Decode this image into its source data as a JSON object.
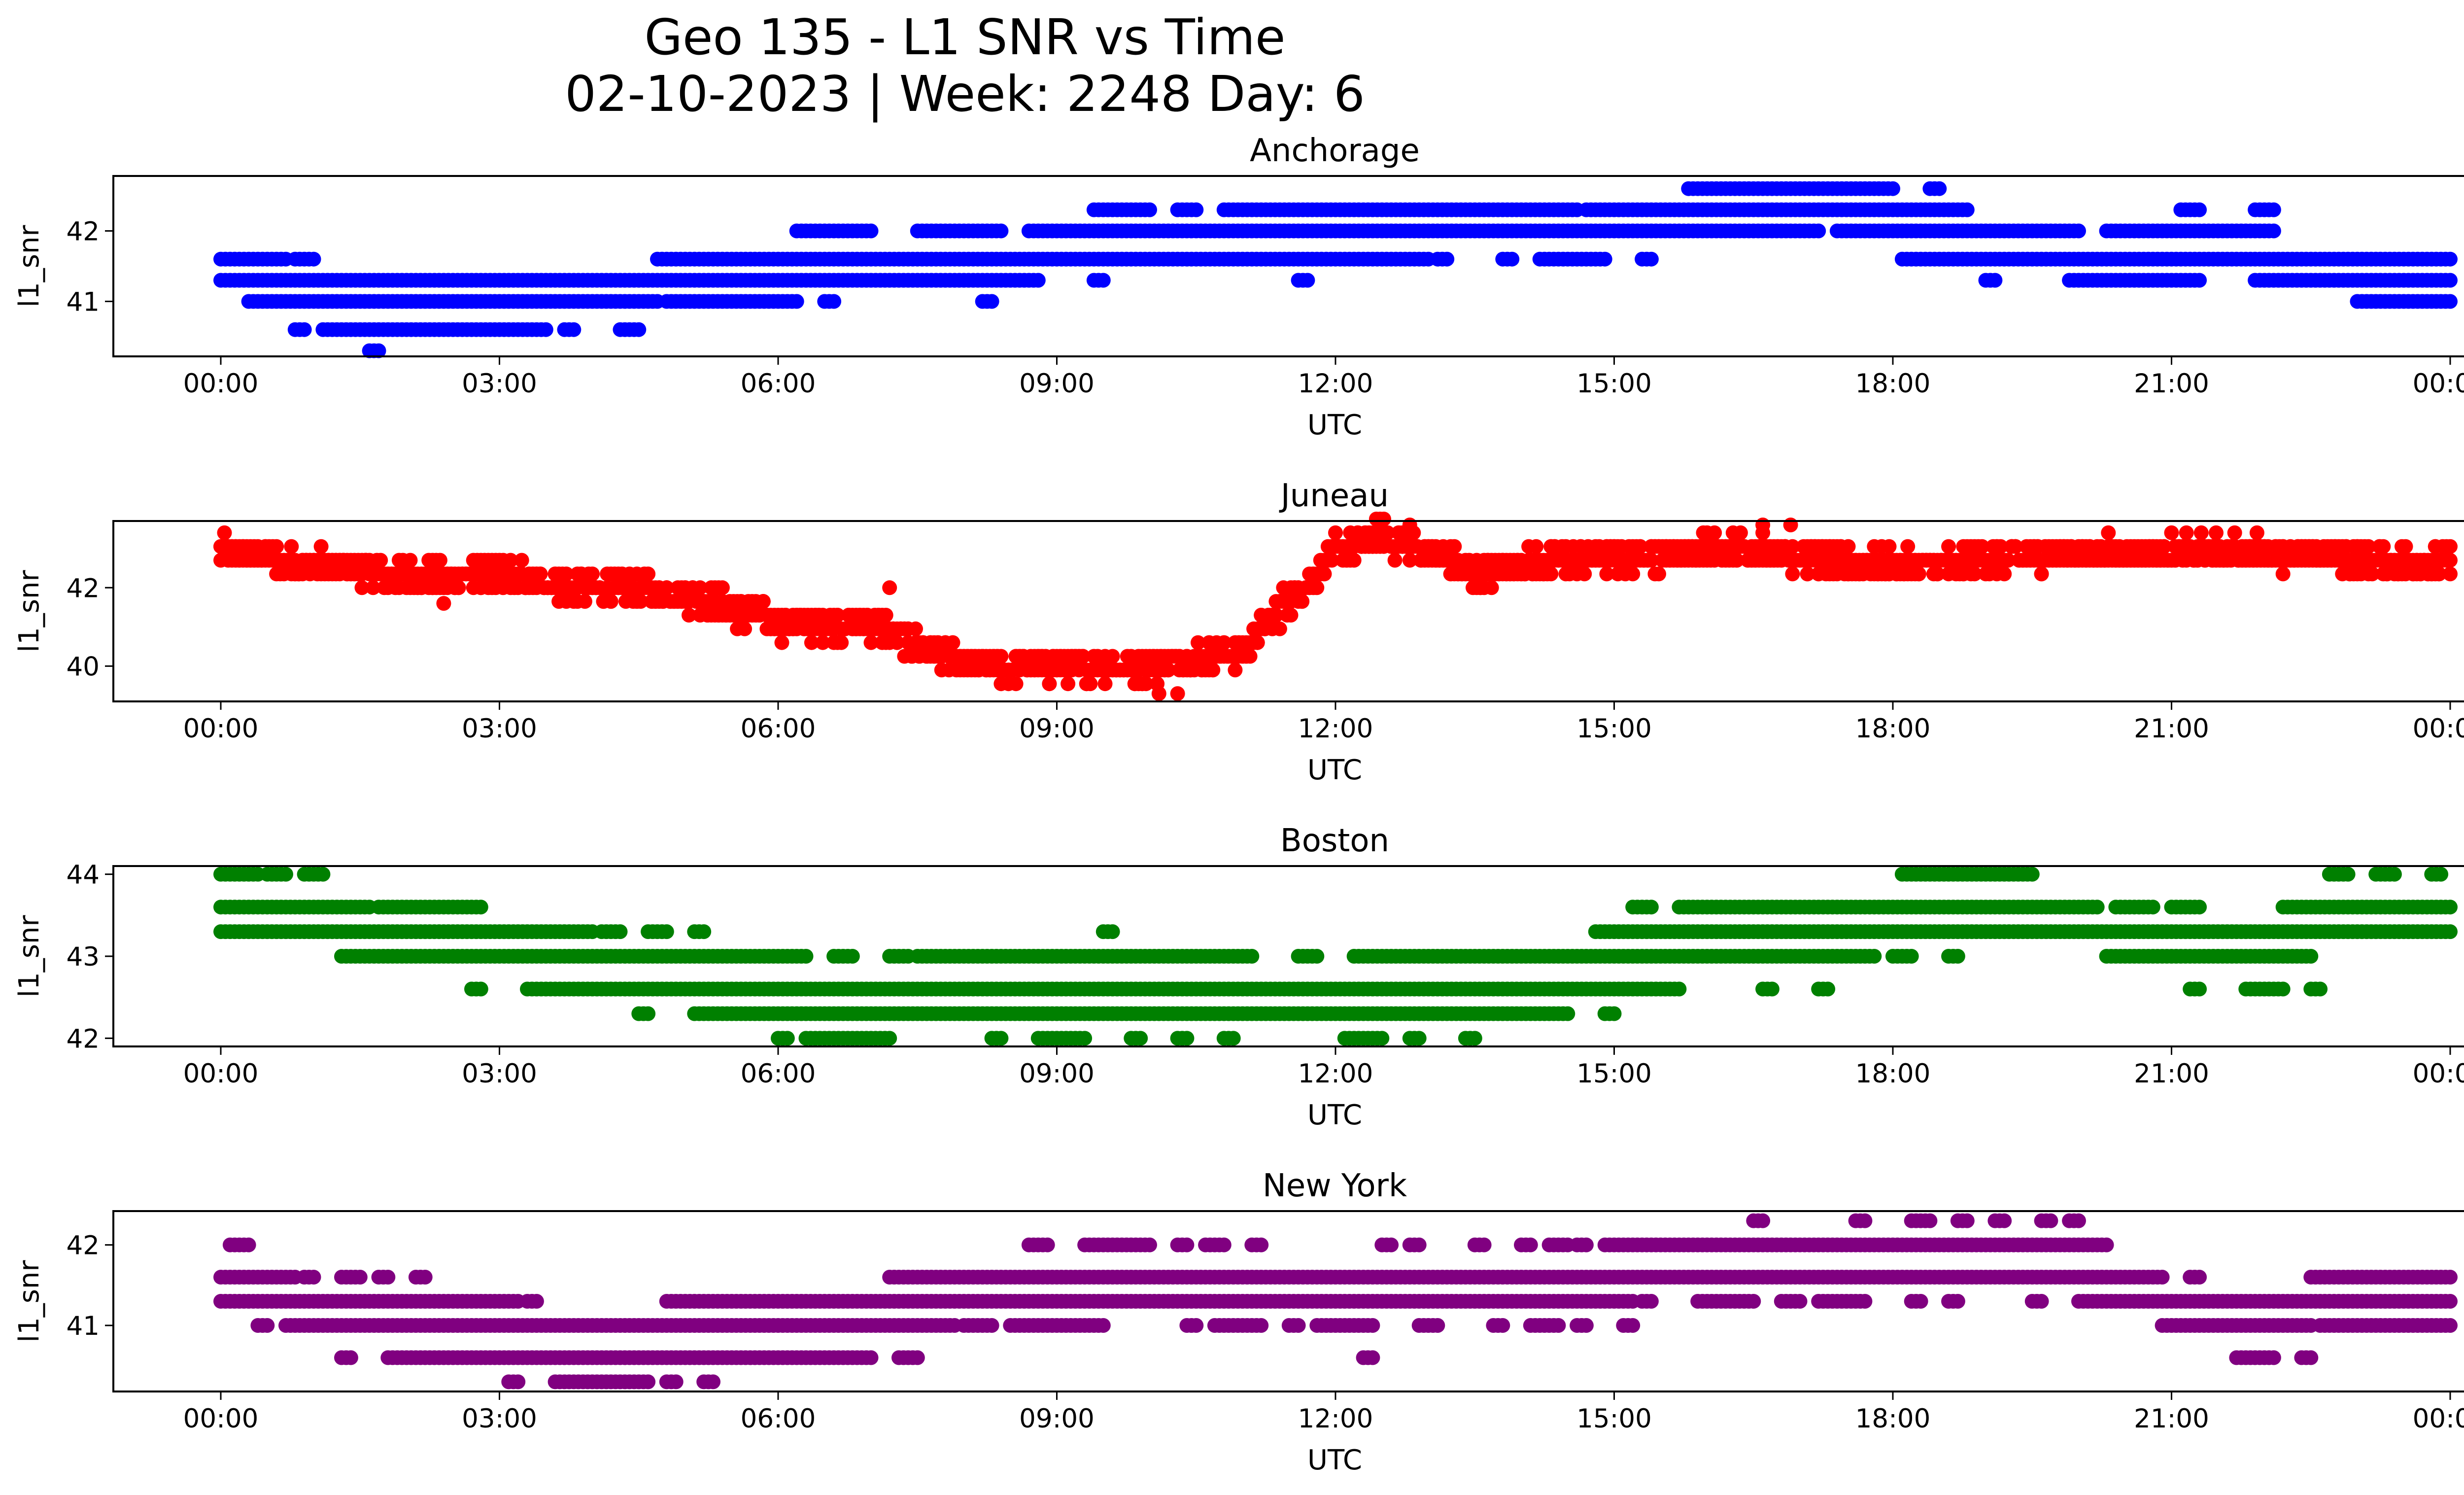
{
  "figure": {
    "title_line1": "Geo 135 - L1 SNR vs Time",
    "title_line2": "02-10-2023 | Week: 2248 Day: 6"
  },
  "chart_data": [
    {
      "type": "scatter",
      "title": "Anchorage",
      "xlabel": "UTC",
      "ylabel": "l1_snr",
      "color": "#0000ff",
      "x_unit": "hours UTC",
      "xlim": [
        -1.15,
        25.15
      ],
      "ylim": [
        40.22,
        42.78
      ],
      "yticks": [
        41,
        42
      ],
      "xticks": [
        "00:00",
        "03:00",
        "06:00",
        "09:00",
        "12:00",
        "15:00",
        "18:00",
        "21:00",
        "00:00"
      ],
      "levels": [
        {
          "y": 41.0,
          "ranges": [
            [
              0.3,
              4.7
            ],
            [
              4.8,
              6.2
            ],
            [
              6.5,
              6.6
            ],
            [
              8.2,
              8.3
            ],
            [
              23.0,
              24.0
            ]
          ]
        },
        {
          "y": 41.3,
          "ranges": [
            [
              0.0,
              8.8
            ],
            [
              9.4,
              9.5
            ],
            [
              11.6,
              11.7
            ],
            [
              19.0,
              19.1
            ],
            [
              19.9,
              21.3
            ],
            [
              21.9,
              24.0
            ]
          ]
        },
        {
          "y": 41.6,
          "ranges": [
            [
              0.0,
              0.7
            ],
            [
              0.8,
              1.0
            ],
            [
              4.7,
              13.0
            ],
            [
              13.1,
              13.2
            ],
            [
              13.8,
              13.9
            ],
            [
              14.2,
              14.9
            ],
            [
              15.3,
              15.4
            ],
            [
              18.1,
              24.0
            ]
          ]
        },
        {
          "y": 42.0,
          "ranges": [
            [
              6.2,
              7.0
            ],
            [
              7.5,
              8.4
            ],
            [
              8.7,
              17.2
            ],
            [
              17.4,
              20.0
            ],
            [
              20.3,
              22.1
            ]
          ]
        },
        {
          "y": 42.3,
          "ranges": [
            [
              9.4,
              10.0
            ],
            [
              10.3,
              10.5
            ],
            [
              10.8,
              14.6
            ],
            [
              14.7,
              18.8
            ],
            [
              21.1,
              21.3
            ],
            [
              21.9,
              22.1
            ]
          ]
        },
        {
          "y": 42.6,
          "ranges": [
            [
              15.8,
              18.0
            ],
            [
              18.4,
              18.5
            ]
          ]
        },
        {
          "y": 40.6,
          "ranges": [
            [
              0.8,
              0.9
            ],
            [
              1.1,
              3.5
            ],
            [
              3.7,
              3.8
            ],
            [
              4.3,
              4.5
            ]
          ]
        },
        {
          "y": 40.3,
          "ranges": [
            [
              1.6,
              1.7
            ]
          ]
        }
      ]
    },
    {
      "type": "scatter",
      "title": "Juneau",
      "xlabel": "UTC",
      "ylabel": "l1_snr",
      "color": "#ff0000",
      "x_unit": "hours UTC",
      "xlim": [
        -1.15,
        25.15
      ],
      "ylim": [
        39.1,
        43.7
      ],
      "yticks": [
        40,
        42
      ],
      "xticks": [
        "00:00",
        "03:00",
        "06:00",
        "09:00",
        "12:00",
        "15:00",
        "18:00",
        "21:00",
        "00:00"
      ],
      "trend": [
        [
          0.0,
          42.9
        ],
        [
          1.0,
          42.6
        ],
        [
          2.0,
          42.3
        ],
        [
          3.0,
          42.3
        ],
        [
          4.0,
          42.0
        ],
        [
          5.0,
          41.8
        ],
        [
          6.0,
          41.1
        ],
        [
          7.0,
          41.1
        ],
        [
          8.0,
          40.0
        ],
        [
          9.0,
          40.0
        ],
        [
          10.0,
          40.0
        ],
        [
          11.0,
          40.4
        ],
        [
          11.5,
          41.7
        ],
        [
          12.0,
          42.9
        ],
        [
          12.5,
          43.3
        ],
        [
          13.0,
          42.9
        ],
        [
          13.5,
          42.3
        ],
        [
          14.0,
          42.6
        ],
        [
          15.0,
          42.8
        ],
        [
          16.5,
          43.0
        ],
        [
          17.5,
          42.6
        ],
        [
          18.5,
          42.6
        ],
        [
          20.0,
          42.9
        ],
        [
          22.0,
          42.9
        ],
        [
          24.0,
          42.6
        ]
      ],
      "spread": 0.7,
      "outliers": [
        [
          2.4,
          41.6
        ],
        [
          7.2,
          42.0
        ],
        [
          10.1,
          39.3
        ],
        [
          10.3,
          39.3
        ],
        [
          16.6,
          43.6
        ],
        [
          16.9,
          43.6
        ],
        [
          12.8,
          43.6
        ]
      ]
    },
    {
      "type": "scatter",
      "title": "Boston",
      "xlabel": "UTC",
      "ylabel": "l1_snr",
      "color": "#008000",
      "x_unit": "hours UTC",
      "xlim": [
        -1.15,
        25.15
      ],
      "ylim": [
        41.9,
        44.1
      ],
      "yticks": [
        42,
        43,
        44
      ],
      "xticks": [
        "00:00",
        "03:00",
        "06:00",
        "09:00",
        "12:00",
        "15:00",
        "18:00",
        "21:00",
        "00:00"
      ],
      "levels": [
        {
          "y": 44.0,
          "ranges": [
            [
              0.0,
              0.4
            ],
            [
              0.5,
              0.7
            ],
            [
              0.9,
              1.1
            ],
            [
              18.1,
              19.5
            ],
            [
              22.7,
              22.9
            ],
            [
              23.2,
              23.4
            ],
            [
              23.8,
              23.9
            ]
          ]
        },
        {
          "y": 43.6,
          "ranges": [
            [
              0.0,
              1.6
            ],
            [
              1.7,
              2.8
            ],
            [
              15.2,
              15.4
            ],
            [
              15.7,
              20.2
            ],
            [
              20.4,
              20.8
            ],
            [
              21.0,
              21.3
            ],
            [
              22.2,
              24.0
            ]
          ]
        },
        {
          "y": 43.3,
          "ranges": [
            [
              0.0,
              4.0
            ],
            [
              4.1,
              4.3
            ],
            [
              4.6,
              4.8
            ],
            [
              5.1,
              5.2
            ],
            [
              9.5,
              9.6
            ],
            [
              14.8,
              24.0
            ]
          ]
        },
        {
          "y": 43.0,
          "ranges": [
            [
              1.3,
              6.3
            ],
            [
              6.6,
              6.8
            ],
            [
              7.2,
              7.4
            ],
            [
              7.5,
              11.1
            ],
            [
              11.6,
              11.8
            ],
            [
              12.2,
              17.8
            ],
            [
              18.0,
              18.2
            ],
            [
              18.6,
              18.7
            ],
            [
              20.3,
              22.5
            ]
          ]
        },
        {
          "y": 42.6,
          "ranges": [
            [
              2.7,
              2.8
            ],
            [
              3.3,
              15.7
            ],
            [
              16.6,
              16.7
            ],
            [
              17.2,
              17.3
            ],
            [
              21.2,
              21.3
            ],
            [
              21.8,
              22.2
            ],
            [
              22.5,
              22.6
            ]
          ]
        },
        {
          "y": 42.3,
          "ranges": [
            [
              4.5,
              4.6
            ],
            [
              5.1,
              14.5
            ],
            [
              14.9,
              15.0
            ]
          ]
        },
        {
          "y": 42.0,
          "ranges": [
            [
              6.0,
              6.1
            ],
            [
              6.3,
              7.2
            ],
            [
              8.3,
              8.4
            ],
            [
              8.8,
              9.3
            ],
            [
              9.8,
              9.9
            ],
            [
              10.3,
              10.4
            ],
            [
              10.8,
              10.9
            ],
            [
              12.1,
              12.5
            ],
            [
              12.8,
              12.9
            ],
            [
              13.4,
              13.5
            ]
          ]
        }
      ]
    },
    {
      "type": "scatter",
      "title": "New York",
      "xlabel": "UTC",
      "ylabel": "l1_snr",
      "color": "#800080",
      "x_unit": "hours UTC",
      "xlim": [
        -1.15,
        25.15
      ],
      "ylim": [
        40.18,
        42.42
      ],
      "yticks": [
        41,
        42
      ],
      "xticks": [
        "00:00",
        "03:00",
        "06:00",
        "09:00",
        "12:00",
        "15:00",
        "18:00",
        "21:00",
        "00:00"
      ],
      "levels": [
        {
          "y": 42.0,
          "ranges": [
            [
              0.1,
              0.3
            ],
            [
              8.7,
              8.9
            ],
            [
              9.3,
              10.0
            ],
            [
              10.3,
              10.4
            ],
            [
              10.6,
              10.8
            ],
            [
              11.1,
              11.2
            ],
            [
              12.5,
              12.6
            ],
            [
              12.8,
              12.9
            ],
            [
              13.5,
              13.6
            ],
            [
              14.0,
              14.1
            ],
            [
              14.3,
              14.5
            ],
            [
              14.6,
              14.7
            ],
            [
              14.9,
              20.3
            ]
          ]
        },
        {
          "y": 41.6,
          "ranges": [
            [
              0.0,
              0.8
            ],
            [
              0.9,
              1.0
            ],
            [
              1.3,
              1.5
            ],
            [
              1.7,
              1.8
            ],
            [
              2.1,
              2.2
            ],
            [
              7.2,
              20.9
            ],
            [
              21.2,
              21.3
            ],
            [
              22.5,
              24.0
            ]
          ]
        },
        {
          "y": 41.3,
          "ranges": [
            [
              0.0,
              3.2
            ],
            [
              3.3,
              3.4
            ],
            [
              4.8,
              15.2
            ],
            [
              15.3,
              15.4
            ],
            [
              15.9,
              16.5
            ],
            [
              16.8,
              17.0
            ],
            [
              17.2,
              17.7
            ],
            [
              18.2,
              18.3
            ],
            [
              18.6,
              18.7
            ],
            [
              19.5,
              19.6
            ],
            [
              20.0,
              24.0
            ]
          ]
        },
        {
          "y": 41.0,
          "ranges": [
            [
              0.4,
              0.5
            ],
            [
              0.7,
              7.9
            ],
            [
              8.0,
              8.3
            ],
            [
              8.5,
              9.5
            ],
            [
              10.4,
              10.5
            ],
            [
              10.7,
              11.2
            ],
            [
              11.5,
              11.6
            ],
            [
              11.8,
              12.4
            ],
            [
              12.9,
              13.1
            ],
            [
              13.7,
              13.8
            ],
            [
              14.1,
              14.4
            ],
            [
              14.6,
              14.7
            ],
            [
              15.1,
              15.2
            ],
            [
              20.9,
              22.5
            ],
            [
              22.6,
              24.0
            ]
          ]
        },
        {
          "y": 40.6,
          "ranges": [
            [
              1.3,
              1.4
            ],
            [
              1.8,
              7.0
            ],
            [
              7.3,
              7.5
            ],
            [
              12.3,
              12.4
            ],
            [
              21.7,
              22.1
            ],
            [
              22.4,
              22.5
            ]
          ]
        },
        {
          "y": 40.3,
          "ranges": [
            [
              3.1,
              3.2
            ],
            [
              3.6,
              4.6
            ],
            [
              4.8,
              4.9
            ],
            [
              5.2,
              5.3
            ]
          ]
        },
        {
          "y": 42.3,
          "ranges": [
            [
              16.5,
              16.6
            ],
            [
              17.6,
              17.7
            ],
            [
              18.2,
              18.4
            ],
            [
              18.7,
              18.8
            ],
            [
              19.1,
              19.2
            ],
            [
              19.6,
              19.7
            ],
            [
              19.9,
              20.0
            ]
          ]
        }
      ]
    }
  ]
}
